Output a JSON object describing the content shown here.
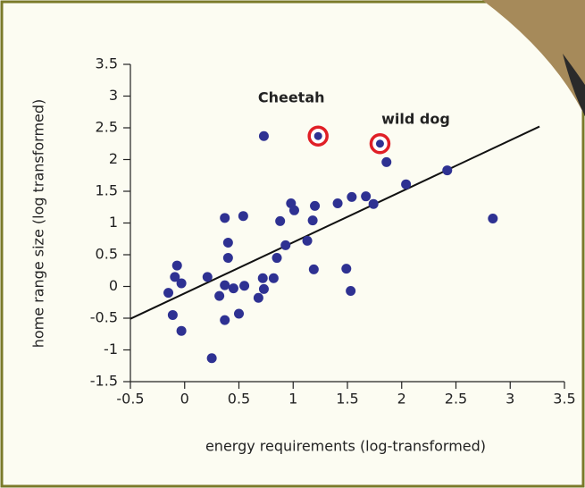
{
  "chart_data": {
    "type": "scatter",
    "x_label": "energy requirements (log-transformed)",
    "y_label": "home range size (log transformed)",
    "xlim": [
      -0.5,
      3.5
    ],
    "ylim": [
      -1.5,
      3.5
    ],
    "xticks": [
      -0.5,
      0,
      0.5,
      1,
      1.5,
      2,
      2.5,
      3,
      3.5
    ],
    "yticks": [
      -1.5,
      -1,
      -0.5,
      0,
      0.5,
      1,
      1.5,
      2,
      2.5,
      3,
      3.5
    ],
    "color": "#2e3192",
    "x": [
      -0.15,
      -0.11,
      -0.09,
      -0.07,
      -0.03,
      -0.03,
      0.21,
      0.25,
      0.32,
      0.37,
      0.37,
      0.37,
      0.4,
      0.4,
      0.45,
      0.5,
      0.54,
      0.55,
      0.68,
      0.72,
      0.73,
      0.73,
      0.82,
      0.85,
      0.88,
      0.93,
      0.98,
      1.01,
      1.13,
      1.18,
      1.19,
      1.2,
      1.41,
      1.49,
      1.53,
      1.54,
      1.67,
      1.74,
      1.86,
      2.04,
      2.42,
      2.84
    ],
    "y": [
      -0.1,
      -0.45,
      0.15,
      0.33,
      0.05,
      -0.7,
      0.15,
      -1.13,
      -0.15,
      0.02,
      -0.53,
      1.08,
      0.69,
      0.45,
      -0.03,
      -0.43,
      1.11,
      0.01,
      -0.18,
      0.13,
      2.37,
      -0.04,
      0.13,
      0.45,
      1.03,
      0.65,
      1.31,
      1.2,
      0.72,
      1.04,
      0.27,
      1.27,
      1.31,
      0.28,
      -0.07,
      1.41,
      1.42,
      1.3,
      1.96,
      1.61,
      1.83,
      1.07
    ],
    "highlights": [
      {
        "text": "Cheetah",
        "x": 1.23,
        "y": 2.37,
        "color": "#e01f26"
      },
      {
        "text": "wild dog",
        "x": 1.8,
        "y": 2.25,
        "color": "#e01f26"
      }
    ],
    "fit_line": {
      "x": [
        -0.5,
        3.27
      ],
      "y": [
        -0.51,
        2.52
      ]
    }
  }
}
